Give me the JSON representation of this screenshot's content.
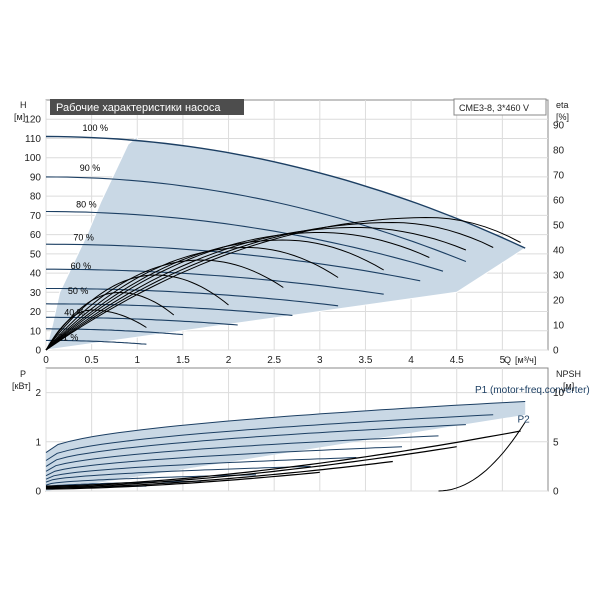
{
  "title": "Рабочие характеристики насоса",
  "model": "CME3-8, 3*460 V",
  "colors": {
    "title_bg": "#4d4d4d",
    "title_fg": "#ffffff",
    "band_fill": "#c9d8e5",
    "band_edge": "#ffffff",
    "curve": "#1c3f63",
    "eff_curve": "#000000",
    "grid": "#dcdcdc",
    "label_text": "#1c3f63"
  },
  "chart_data": [
    {
      "type": "line",
      "name": "performance",
      "ylabel": "H",
      "yunit": "[м]",
      "xlabel": "Q",
      "xunit": "[м³/ч]",
      "y2label": "eta",
      "y2unit": "[%]",
      "xlim": [
        0,
        5.5
      ],
      "ylim": [
        0,
        130
      ],
      "y2lim": [
        0,
        100
      ],
      "xticks": [
        "0",
        "0.5",
        "1",
        "1.5",
        "2",
        "2.5",
        "3",
        "3.5",
        "4",
        "4.5",
        "5"
      ],
      "yticks": [
        "0",
        "10",
        "20",
        "30",
        "40",
        "50",
        "60",
        "70",
        "80",
        "90",
        "100",
        "110",
        "120"
      ],
      "y2ticks": [
        "0",
        "10",
        "20",
        "30",
        "40",
        "50",
        "60",
        "70",
        "80",
        "90"
      ],
      "grid": true,
      "speed_labels": [
        {
          "text": "100 %",
          "q": 0.4,
          "h": 114
        },
        {
          "text": "90 %",
          "q": 0.37,
          "h": 93
        },
        {
          "text": "80 %",
          "q": 0.33,
          "h": 74
        },
        {
          "text": "70 %",
          "q": 0.3,
          "h": 57
        },
        {
          "text": "60 %",
          "q": 0.27,
          "h": 42
        },
        {
          "text": "50 %",
          "q": 0.24,
          "h": 29
        },
        {
          "text": "40 %",
          "q": 0.2,
          "h": 18
        },
        {
          "text": "21 %",
          "q": 0.13,
          "h": 5
        }
      ],
      "band": {
        "q_left": [
          0,
          0.07,
          0.15,
          0.3,
          0.45,
          0.6,
          0.75,
          0.9,
          1.0
        ],
        "h_left": [
          0,
          13,
          30,
          45,
          60,
          77,
          92,
          107,
          111
        ],
        "q_right": [
          4.5,
          5.25
        ],
        "h_right": [
          30,
          52
        ]
      },
      "series": [
        {
          "h0": 111,
          "qmax": 5.25,
          "hmax": 53
        },
        {
          "h0": 90,
          "qmax": 4.6,
          "hmax": 46
        },
        {
          "h0": 72,
          "qmax": 4.35,
          "hmax": 41
        },
        {
          "h0": 55,
          "qmax": 4.1,
          "hmax": 36
        },
        {
          "h0": 42,
          "qmax": 3.7,
          "hmax": 29
        },
        {
          "h0": 32,
          "qmax": 3.2,
          "hmax": 23
        },
        {
          "h0": 24,
          "qmax": 2.7,
          "hmax": 18
        },
        {
          "h0": 17,
          "qmax": 2.1,
          "hmax": 13
        },
        {
          "h0": 11,
          "qmax": 1.5,
          "hmax": 8
        },
        {
          "h0": 5,
          "qmax": 1.1,
          "hmax": 3
        }
      ],
      "eta_series": [
        {
          "qpeak": 4.2,
          "peak": 53,
          "qend": 5.2,
          "end": 43
        },
        {
          "qpeak": 3.8,
          "peak": 51,
          "qend": 4.9,
          "end": 41
        },
        {
          "qpeak": 3.4,
          "peak": 49,
          "qend": 4.6,
          "end": 40
        },
        {
          "qpeak": 3.0,
          "peak": 47,
          "qend": 4.2,
          "end": 37
        },
        {
          "qpeak": 2.6,
          "peak": 44,
          "qend": 3.7,
          "end": 32
        },
        {
          "qpeak": 2.2,
          "peak": 41,
          "qend": 3.2,
          "end": 29
        },
        {
          "qpeak": 1.7,
          "peak": 36,
          "qend": 2.6,
          "end": 25
        },
        {
          "qpeak": 1.2,
          "peak": 30,
          "qend": 2.0,
          "end": 18
        },
        {
          "qpeak": 0.8,
          "peak": 23,
          "qend": 1.4,
          "end": 14
        },
        {
          "qpeak": 0.5,
          "peak": 16,
          "qend": 1.1,
          "end": 9
        }
      ]
    },
    {
      "type": "line",
      "name": "power",
      "ylabel": "P",
      "yunit": "[кВт]",
      "y2label": "NPSH",
      "y2unit": "[м]",
      "xlim": [
        0,
        5.5
      ],
      "ylim": [
        0,
        2.5
      ],
      "y2lim": [
        0,
        12.5
      ],
      "yticks": [
        "0",
        "1",
        "2"
      ],
      "y2ticks": [
        "0",
        "5",
        "10"
      ],
      "grid": true,
      "legend": [
        {
          "text": "P1 (motor+freq.converter)",
          "q": 4.7,
          "p": 1.95
        },
        {
          "text": "P2",
          "q": 5.3,
          "p": 1.45
        }
      ],
      "p1_series": [
        {
          "p0": 0.78,
          "qmax": 5.25,
          "pmax": 1.82
        },
        {
          "p0": 0.62,
          "qmax": 4.9,
          "pmax": 1.55
        },
        {
          "p0": 0.5,
          "qmax": 4.6,
          "pmax": 1.35
        },
        {
          "p0": 0.4,
          "qmax": 4.3,
          "pmax": 1.12
        },
        {
          "p0": 0.31,
          "qmax": 3.9,
          "pmax": 0.9
        },
        {
          "p0": 0.24,
          "qmax": 3.4,
          "pmax": 0.68
        },
        {
          "p0": 0.18,
          "qmax": 2.9,
          "pmax": 0.5
        },
        {
          "p0": 0.12,
          "qmax": 2.3,
          "pmax": 0.33
        },
        {
          "p0": 0.08,
          "qmax": 1.7,
          "pmax": 0.2
        },
        {
          "p0": 0.04,
          "qmax": 1.1,
          "pmax": 0.1
        }
      ],
      "p2_series": [
        {
          "p0": 0.1,
          "qmax": 5.2,
          "pmax": 1.22
        },
        {
          "p0": 0.08,
          "qmax": 4.5,
          "pmax": 0.9
        },
        {
          "p0": 0.06,
          "qmax": 3.8,
          "pmax": 0.6
        },
        {
          "p0": 0.04,
          "qmax": 3.0,
          "pmax": 0.38
        }
      ],
      "npsh": {
        "q": [
          4.3,
          5.25
        ],
        "v": [
          0,
          7
        ]
      }
    }
  ]
}
